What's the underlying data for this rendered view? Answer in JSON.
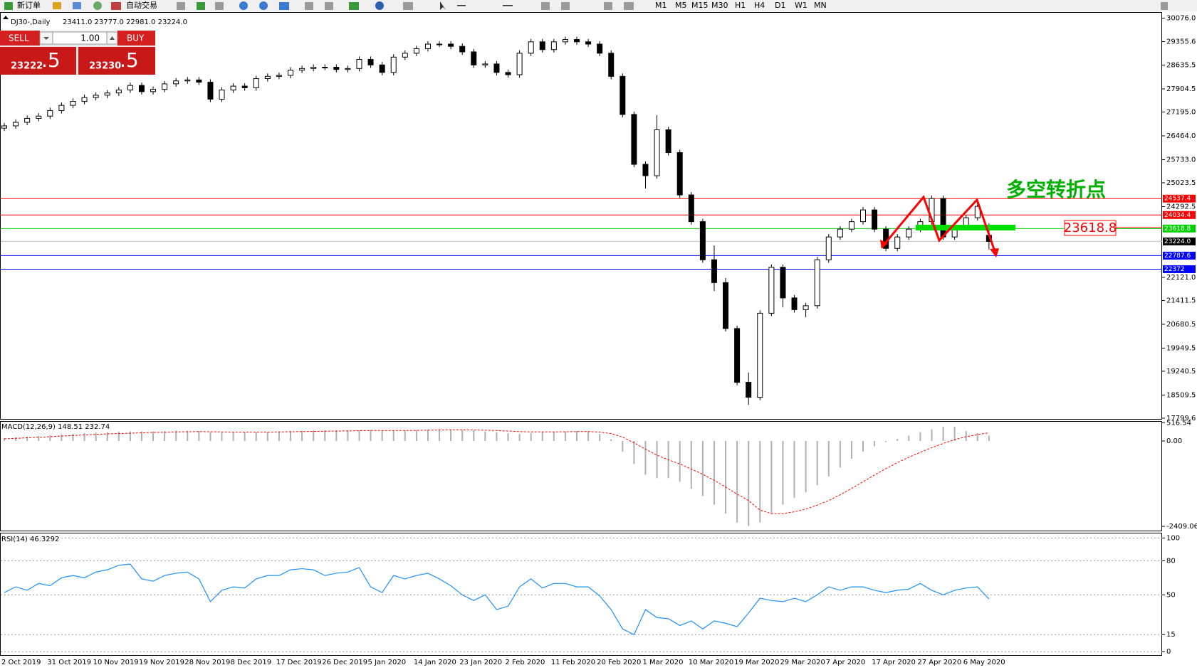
{
  "toolbar": [
    "新订单",
    "自动交易",
    "M1",
    "M5",
    "M15",
    "M30",
    "H1",
    "H4",
    "D1",
    "W1",
    "MN"
  ],
  "trade_panel": {
    "sell": "SELL",
    "lots": "1.00",
    "buy": "BUY",
    "bid_main": "23222",
    "bid_tail": ".5",
    "ask_main": "23230",
    "ask_tail": ".5"
  },
  "header": {
    "symbol": "DJ30-,Daily",
    "ohlc": "23411.0 23777.0 22981.0 23224.0"
  },
  "annotation": {
    "text": "多空转折点",
    "price_label": "23618.8"
  },
  "chart_data": [
    {
      "type": "candlestick",
      "categories": [
        "2 Oct 2019",
        null,
        null,
        null,
        "31 Oct 2019",
        null,
        null,
        null,
        "10 Nov 2019",
        null,
        null,
        null,
        "19 Nov 2019",
        null,
        null,
        null,
        "28 Nov 2019",
        null,
        null,
        null,
        "8 Dec 2019",
        null,
        null,
        null,
        "17 Dec 2019",
        null,
        null,
        null,
        "26 Dec 2019",
        null,
        null,
        null,
        "5 Jan 2020",
        null,
        null,
        null,
        "14 Jan 2020",
        null,
        null,
        null,
        "23 Jan 2020",
        null,
        null,
        null,
        "2 Feb 2020",
        null,
        null,
        null,
        "11 Feb 2020",
        null,
        null,
        null,
        "20 Feb 2020",
        null,
        null,
        null,
        "1 Mar 2020",
        null,
        null,
        null,
        "10 Mar 2020",
        null,
        null,
        null,
        "19 Mar 2020",
        null,
        null,
        null,
        "29 Mar 2020",
        null,
        null,
        null,
        "7 Apr 2020",
        null,
        null,
        null,
        "17 Apr 2020",
        null,
        null,
        null,
        "27 Apr 2020",
        null,
        null,
        null,
        "6 May 2020",
        null,
        null
      ],
      "open": [
        26700,
        26770,
        26880,
        27000,
        27070,
        27240,
        27400,
        27520,
        27640,
        27710,
        27780,
        27870,
        28010,
        27820,
        27890,
        28060,
        28150,
        28180,
        28110,
        27590,
        27870,
        27990,
        27940,
        28220,
        28290,
        28320,
        28480,
        28530,
        28570,
        28570,
        28500,
        28530,
        28810,
        28640,
        28410,
        28880,
        29000,
        29140,
        29280,
        29280,
        29210,
        29040,
        28640,
        28670,
        28410,
        28340,
        29000,
        29350,
        29110,
        29350,
        29420,
        29350,
        29280,
        29000,
        28290,
        27120,
        25590,
        25240,
        26650,
        25950,
        24650,
        23830,
        22660,
        21960,
        20550,
        18900,
        18440,
        21020,
        22430,
        21490,
        21130,
        21250,
        22660,
        23360,
        23600,
        23830,
        24190,
        23600,
        23010,
        23360,
        23600,
        23830,
        24540,
        23360,
        23720,
        23950,
        23411
      ],
      "high": [
        26860,
        26970,
        27090,
        27160,
        27330,
        27490,
        27610,
        27730,
        27800,
        27870,
        27960,
        28100,
        28100,
        27980,
        28150,
        28240,
        28270,
        28270,
        28200,
        27960,
        28080,
        28080,
        28310,
        28380,
        28410,
        28570,
        28620,
        28660,
        28660,
        28660,
        28620,
        28900,
        28900,
        28730,
        28970,
        29090,
        29230,
        29370,
        29370,
        29370,
        29300,
        29130,
        28760,
        28760,
        28500,
        29090,
        29440,
        29440,
        29440,
        29510,
        29510,
        29440,
        29370,
        29090,
        28380,
        27210,
        25680,
        27100,
        26740,
        26040,
        24740,
        23920,
        23100,
        22100,
        20640,
        19200,
        21110,
        22520,
        22520,
        21580,
        21340,
        22750,
        23450,
        23690,
        23920,
        24280,
        24280,
        23690,
        23450,
        23690,
        23920,
        24630,
        24630,
        23810,
        24040,
        24390,
        23777
      ],
      "low": [
        26610,
        26680,
        26790,
        26910,
        26980,
        27150,
        27310,
        27430,
        27550,
        27620,
        27690,
        27780,
        27730,
        27730,
        27800,
        27970,
        28060,
        28020,
        27500,
        27500,
        27780,
        27850,
        27850,
        28130,
        28200,
        28230,
        28390,
        28440,
        28480,
        28410,
        28410,
        28440,
        28550,
        28320,
        28320,
        28790,
        28910,
        29050,
        29190,
        29120,
        28950,
        28550,
        28550,
        28320,
        28250,
        28250,
        28910,
        29020,
        29020,
        29260,
        29260,
        29190,
        28910,
        28200,
        27030,
        25500,
        24850,
        25150,
        25860,
        24560,
        23740,
        22570,
        21700,
        20460,
        18810,
        18210,
        18350,
        20930,
        21200,
        21040,
        20900,
        21160,
        22570,
        23270,
        23510,
        23740,
        23510,
        22920,
        22920,
        23270,
        23510,
        23740,
        23270,
        23270,
        23630,
        23860,
        22981
      ],
      "close": [
        26770,
        26880,
        27000,
        27070,
        27240,
        27400,
        27520,
        27640,
        27710,
        27780,
        27870,
        28010,
        27820,
        27890,
        28060,
        28150,
        28180,
        28110,
        27590,
        27870,
        27990,
        27940,
        28220,
        28290,
        28320,
        28480,
        28530,
        28570,
        28570,
        28500,
        28530,
        28810,
        28640,
        28410,
        28880,
        29000,
        29140,
        29280,
        29280,
        29210,
        29040,
        28640,
        28670,
        28410,
        28340,
        29000,
        29350,
        29110,
        29350,
        29420,
        29350,
        29280,
        29000,
        28290,
        27120,
        25590,
        25240,
        26650,
        25950,
        24650,
        23830,
        22660,
        21960,
        20550,
        18900,
        18440,
        21020,
        22430,
        21490,
        21130,
        21250,
        22660,
        23360,
        23600,
        23830,
        24190,
        23600,
        23010,
        23360,
        23600,
        23830,
        24540,
        23360,
        23720,
        23950,
        24300,
        23224
      ],
      "up_color": "#ffffff",
      "down_color": "#000000",
      "ylim": [
        17776,
        30240
      ],
      "yticks": [
        {
          "value": 30076,
          "label": "30076.0"
        },
        29355.6,
        28635.5,
        27904.5,
        {
          "value": 27195,
          "label": "27195.0"
        },
        {
          "value": 26464,
          "label": "26464.0"
        },
        {
          "value": 25733,
          "label": "25733.0"
        },
        25023.5,
        24292.5,
        {
          "value": 22121,
          "label": "22121.0"
        },
        21411.5,
        20680.5,
        19949.5,
        19240.5,
        18509.5,
        17799.6
      ],
      "levels": [
        {
          "value": 24537.4,
          "color": "#ff0000"
        },
        {
          "value": 24034.4,
          "color": "#ff0000"
        },
        {
          "value": 23618.8,
          "color": "#00d000"
        },
        {
          "value": 23224,
          "label": "23224.0",
          "color": "#c0c0c0",
          "label_color": "#000000"
        },
        {
          "value": 22787.6,
          "color": "#0000ff"
        },
        {
          "value": 22372,
          "color": "#0000ff"
        }
      ]
    },
    {
      "type": "macd",
      "title": "MACD(12,26,9) 148.51 232.74",
      "histogram": [
        80,
        100,
        120,
        140,
        160,
        180,
        200,
        220,
        240,
        250,
        260,
        270,
        270,
        270,
        280,
        290,
        290,
        280,
        250,
        240,
        240,
        240,
        250,
        260,
        270,
        280,
        290,
        300,
        300,
        300,
        300,
        300,
        310,
        300,
        290,
        300,
        310,
        320,
        330,
        330,
        320,
        300,
        270,
        250,
        220,
        200,
        220,
        250,
        260,
        270,
        280,
        270,
        200,
        50,
        -300,
        -650,
        -950,
        -1050,
        -1050,
        -1150,
        -1350,
        -1550,
        -1800,
        -2050,
        -2300,
        -2400,
        -2300,
        -2050,
        -1800,
        -1600,
        -1450,
        -1250,
        -1000,
        -750,
        -500,
        -300,
        -150,
        -30,
        60,
        150,
        250,
        330,
        400,
        400,
        280,
        220,
        148.51
      ],
      "signal": [
        60,
        75,
        90,
        105,
        120,
        140,
        155,
        170,
        185,
        200,
        210,
        220,
        230,
        240,
        245,
        255,
        260,
        265,
        260,
        255,
        250,
        250,
        250,
        250,
        255,
        260,
        265,
        270,
        275,
        280,
        285,
        290,
        295,
        295,
        295,
        295,
        300,
        305,
        310,
        315,
        315,
        310,
        305,
        295,
        280,
        265,
        255,
        255,
        255,
        260,
        265,
        265,
        250,
        210,
        110,
        -50,
        -230,
        -400,
        -530,
        -650,
        -790,
        -940,
        -1110,
        -1300,
        -1500,
        -1680,
        -1950,
        -2050,
        -2050,
        -2000,
        -1920,
        -1810,
        -1680,
        -1520,
        -1340,
        -1150,
        -960,
        -780,
        -610,
        -460,
        -320,
        -190,
        -70,
        40,
        120,
        180,
        232.74
      ],
      "histogram_color": "#b0b0b0",
      "signal_color": "#ff0000",
      "ylim": [
        -2529,
        542
      ],
      "yticks": [
        516.54,
        {
          "value": 0,
          "label": "0.00"
        },
        -2409.06
      ]
    },
    {
      "type": "line",
      "title": "RSI(14) 46.3292",
      "values": [
        52,
        57,
        54,
        60,
        58,
        65,
        67,
        65,
        70,
        72,
        76,
        77,
        64,
        62,
        67,
        69,
        70,
        64,
        44,
        54,
        57,
        56,
        64,
        67,
        67,
        72,
        73,
        72,
        67,
        69,
        70,
        74,
        57,
        52,
        67,
        64,
        67,
        69,
        64,
        58,
        50,
        45,
        50,
        37,
        40,
        57,
        64,
        56,
        60,
        60,
        57,
        57,
        49,
        37,
        20,
        15,
        37,
        30,
        29,
        23,
        27,
        20,
        27,
        25,
        22,
        34,
        47,
        45,
        44,
        47,
        44,
        50,
        57,
        54,
        57,
        57,
        54,
        52,
        54,
        55,
        60,
        54,
        50,
        54,
        56,
        57,
        46.3292
      ],
      "color": "#1e90ff",
      "ylim": [
        -3,
        104
      ],
      "yticks": [
        100,
        80,
        50,
        15,
        0
      ],
      "grid": true
    }
  ]
}
